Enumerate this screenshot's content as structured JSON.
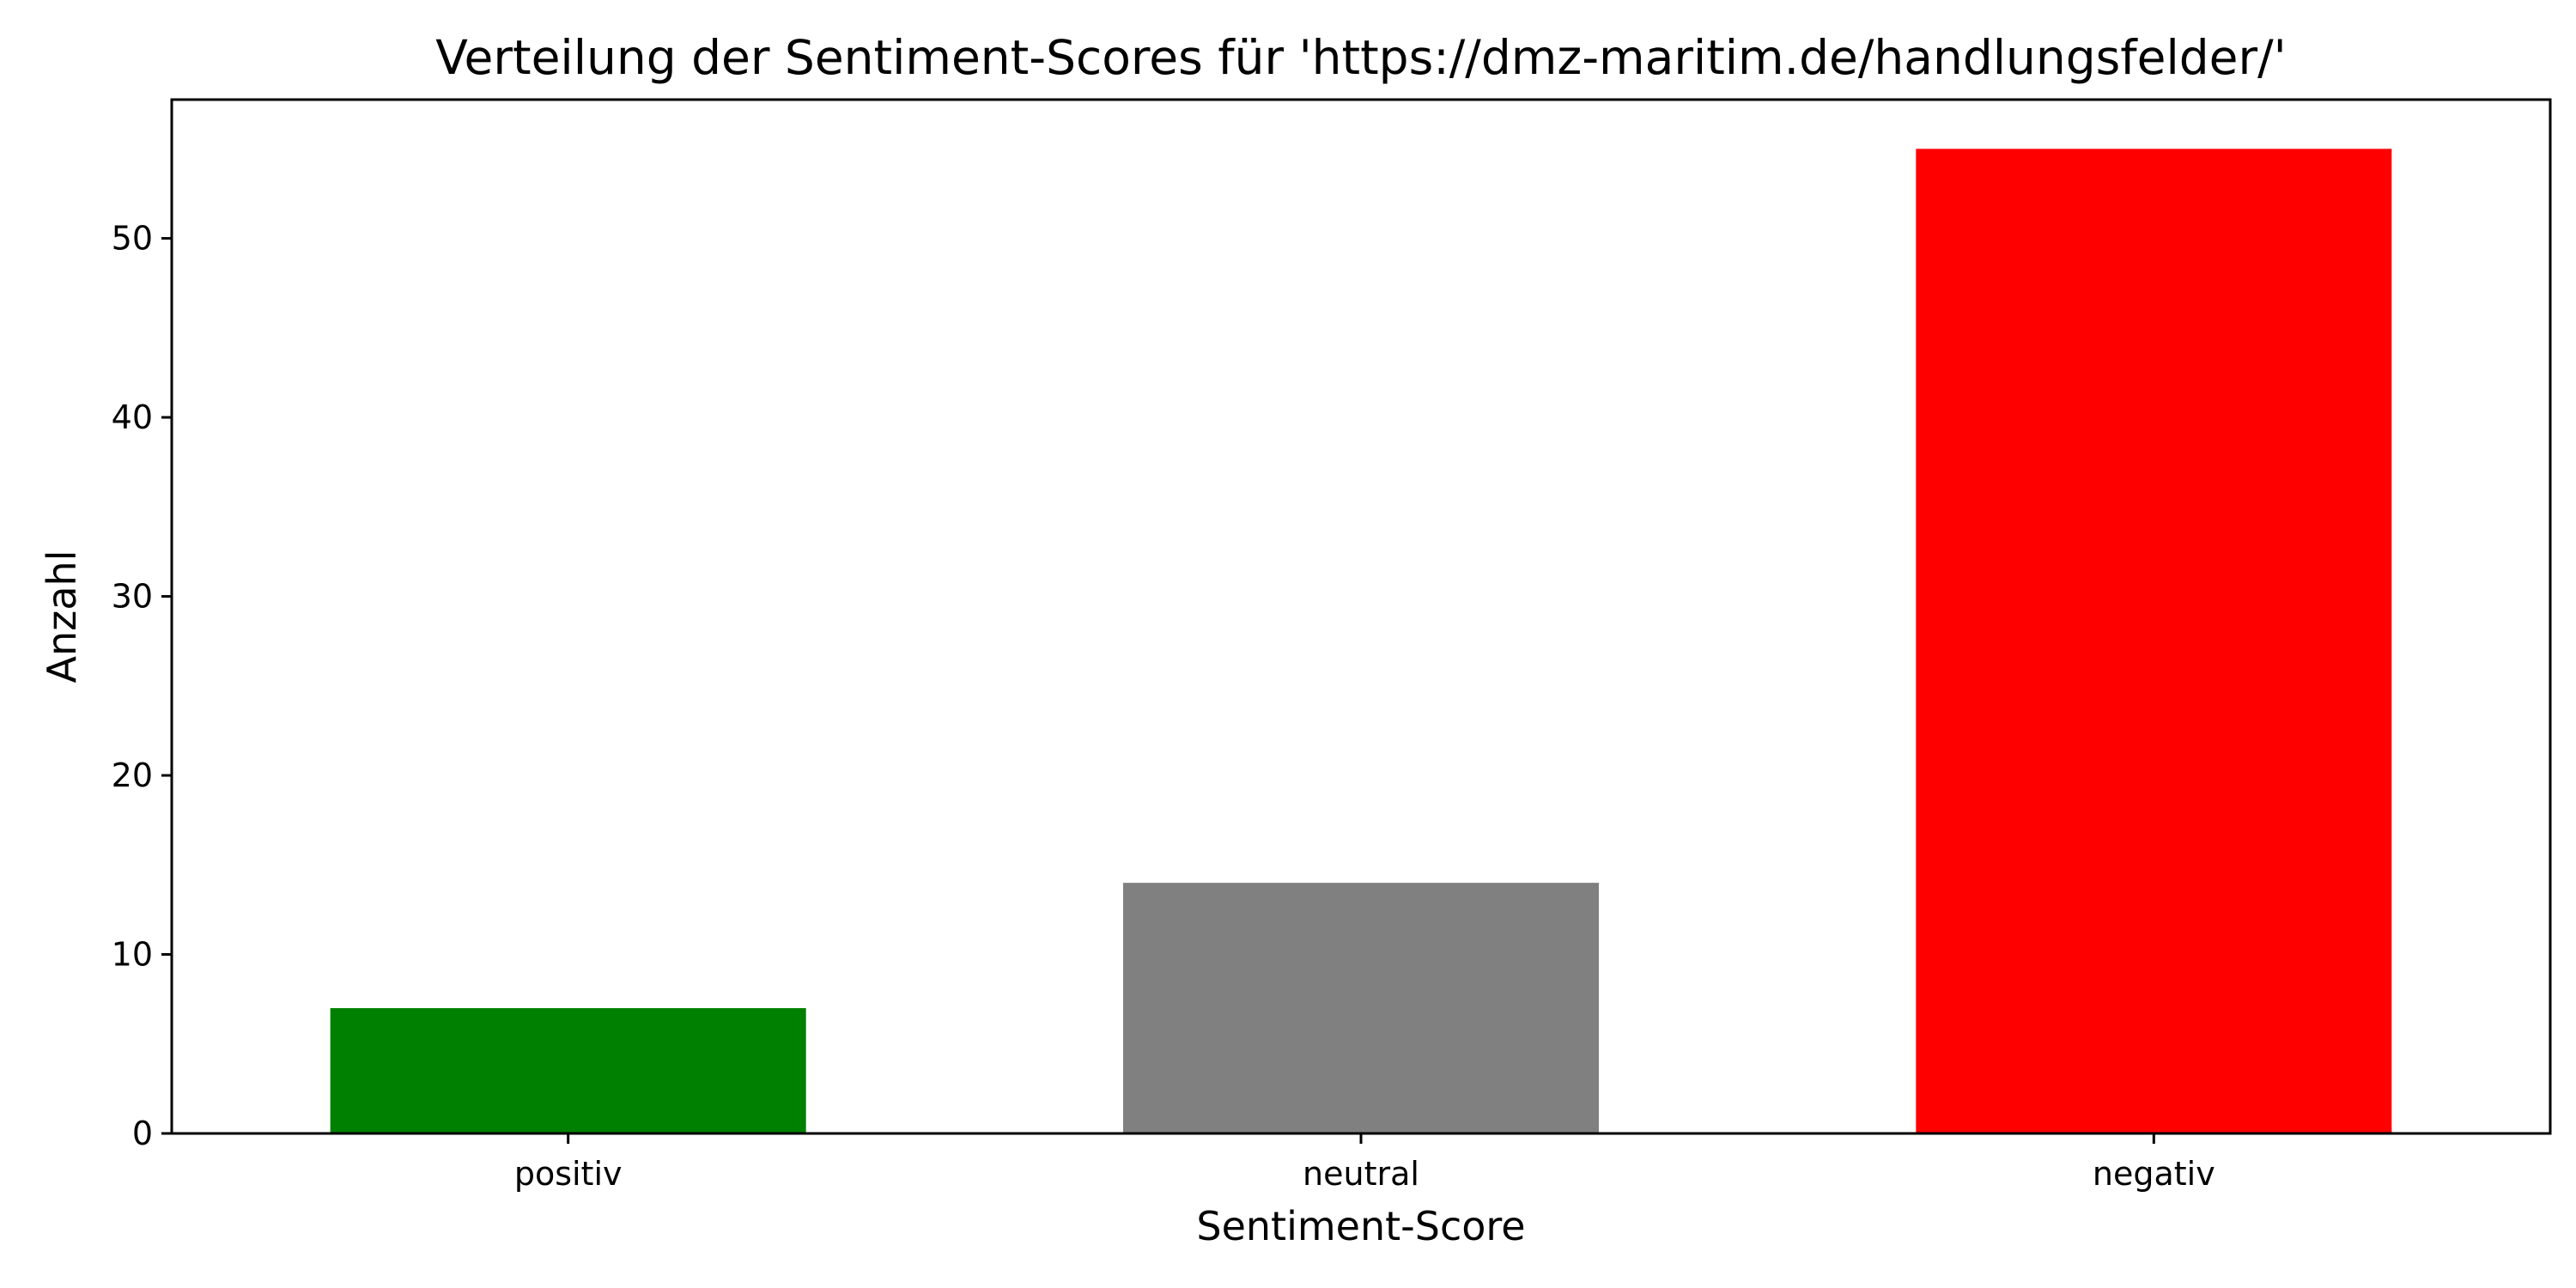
{
  "chart_data": {
    "type": "bar",
    "title": "Verteilung der Sentiment-Scores für 'https://dmz-maritim.de/handlungsfelder/'",
    "xlabel": "Sentiment-Score",
    "ylabel": "Anzahl",
    "categories": [
      "positiv",
      "neutral",
      "negativ"
    ],
    "values": [
      7,
      14,
      55
    ],
    "colors": [
      "#008000",
      "#808080",
      "#ff0000"
    ],
    "ylim": [
      0,
      57.75
    ],
    "yticks": [
      0,
      10,
      20,
      30,
      40,
      50
    ],
    "grid": false,
    "reference_line": {
      "y": 0,
      "style": "dashed"
    }
  }
}
